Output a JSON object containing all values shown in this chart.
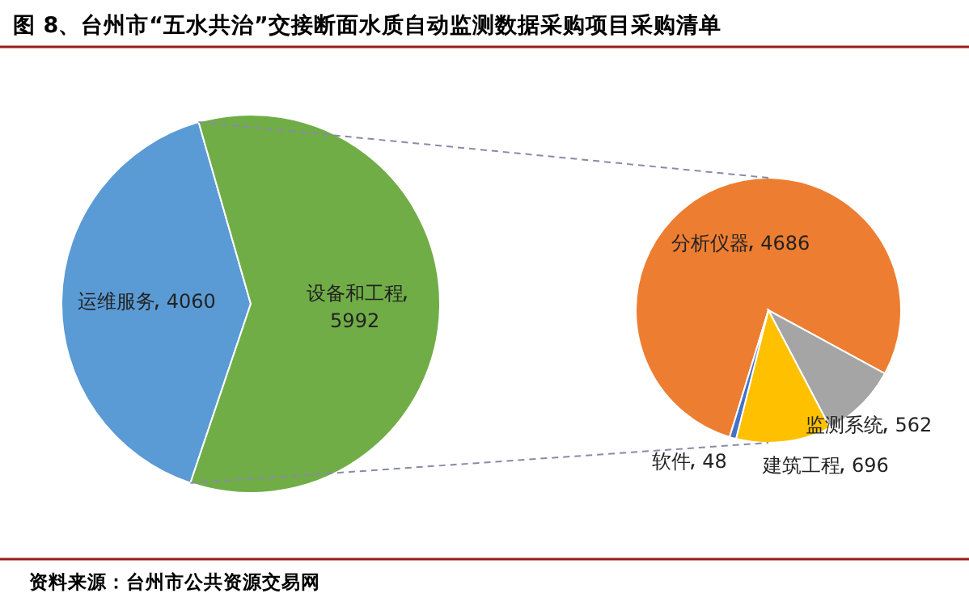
{
  "chart_data": [
    {
      "type": "pie",
      "title": "图 8、台州市“五水共治”交接断面水质自动监测数据采购项目采购清单",
      "categories": [
        "运维服务",
        "设备和工程"
      ],
      "values": [
        4060,
        5992
      ],
      "colors": [
        "#5b9bd5",
        "#70ad47"
      ],
      "data_labels": true,
      "annotations": [
        "资料来源：台州市公共资源交易网"
      ]
    },
    {
      "type": "pie",
      "categories": [
        "分析仪器",
        "监测系统",
        "建筑工程",
        "软件"
      ],
      "values": [
        4686,
        562,
        696,
        48
      ],
      "colors": [
        "#ed7d31",
        "#a5a5a5",
        "#ffc000",
        "#4472c4"
      ],
      "data_labels": true
    }
  ]
}
